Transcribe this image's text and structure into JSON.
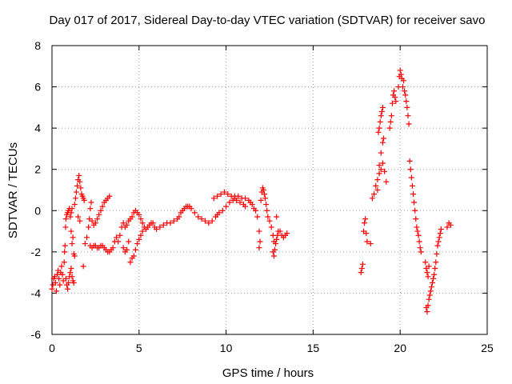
{
  "chart_data": {
    "type": "scatter",
    "title": "Day 017 of 2017, Sidereal Day-to-day VTEC variation (SDTVAR) for receiver savo",
    "xlabel": "GPS time / hours",
    "ylabel": "SDTVAR / TECUs",
    "xlim": [
      0,
      25
    ],
    "ylim": [
      -6,
      8
    ],
    "xticks": [
      0,
      5,
      10,
      15,
      20,
      25
    ],
    "yticks": [
      -6,
      -4,
      -2,
      0,
      2,
      4,
      6,
      8
    ],
    "grid": true,
    "marker": "+",
    "color": "#ff0000",
    "series": [
      {
        "name": "SDTVAR",
        "points": [
          [
            0.0,
            -3.8
          ],
          [
            0.05,
            -3.6
          ],
          [
            0.1,
            -3.3
          ],
          [
            0.15,
            -3.2
          ],
          [
            0.2,
            -3.5
          ],
          [
            0.25,
            -3.9
          ],
          [
            0.3,
            -3.1
          ],
          [
            0.35,
            -2.9
          ],
          [
            0.4,
            -3.3
          ],
          [
            0.45,
            -3.6
          ],
          [
            0.5,
            -3.0
          ],
          [
            0.55,
            -2.7
          ],
          [
            0.6,
            -3.1
          ],
          [
            0.65,
            -3.4
          ],
          [
            0.7,
            -2.5
          ],
          [
            0.72,
            -2.0
          ],
          [
            0.75,
            -1.7
          ],
          [
            0.78,
            -0.8
          ],
          [
            0.8,
            -0.4
          ],
          [
            0.85,
            -0.2
          ],
          [
            0.9,
            -0.1
          ],
          [
            0.95,
            0.0
          ],
          [
            1.0,
            0.1
          ],
          [
            1.05,
            -0.3
          ],
          [
            1.1,
            -0.1
          ],
          [
            1.15,
            0.1
          ],
          [
            0.8,
            -3.3
          ],
          [
            0.85,
            -3.6
          ],
          [
            0.9,
            -3.8
          ],
          [
            0.95,
            -3.5
          ],
          [
            1.0,
            -3.2
          ],
          [
            1.05,
            -3.0
          ],
          [
            1.1,
            -2.8
          ],
          [
            1.15,
            -3.2
          ],
          [
            1.2,
            -3.4
          ],
          [
            1.25,
            -3.5
          ],
          [
            1.1,
            -1.0
          ],
          [
            1.15,
            -1.6
          ],
          [
            1.2,
            -1.3
          ],
          [
            1.25,
            -2.1
          ],
          [
            1.3,
            -2.2
          ],
          [
            1.3,
            0.3
          ],
          [
            1.35,
            0.6
          ],
          [
            1.4,
            0.9
          ],
          [
            1.45,
            1.2
          ],
          [
            1.5,
            1.5
          ],
          [
            1.55,
            1.7
          ],
          [
            1.6,
            1.4
          ],
          [
            1.65,
            1.1
          ],
          [
            1.7,
            0.8
          ],
          [
            1.75,
            0.7
          ],
          [
            1.8,
            0.6
          ],
          [
            1.85,
            0.5
          ],
          [
            1.5,
            -0.3
          ],
          [
            1.6,
            -0.5
          ],
          [
            1.8,
            -2.7
          ],
          [
            1.9,
            -1.6
          ],
          [
            2.0,
            -1.3
          ],
          [
            2.1,
            -0.8
          ],
          [
            2.15,
            -0.4
          ],
          [
            2.2,
            0.1
          ],
          [
            2.25,
            0.4
          ],
          [
            2.3,
            -0.5
          ],
          [
            2.4,
            -0.7
          ],
          [
            2.5,
            -0.6
          ],
          [
            2.6,
            -0.4
          ],
          [
            2.7,
            -0.2
          ],
          [
            2.8,
            0.0
          ],
          [
            2.9,
            0.2
          ],
          [
            3.0,
            0.4
          ],
          [
            3.1,
            0.5
          ],
          [
            3.2,
            0.6
          ],
          [
            3.3,
            0.7
          ],
          [
            2.2,
            -1.7
          ],
          [
            2.3,
            -1.8
          ],
          [
            2.4,
            -1.7
          ],
          [
            2.5,
            -1.7
          ],
          [
            2.6,
            -1.8
          ],
          [
            2.7,
            -1.8
          ],
          [
            2.8,
            -1.7
          ],
          [
            2.9,
            -1.7
          ],
          [
            3.0,
            -1.8
          ],
          [
            3.1,
            -1.9
          ],
          [
            3.2,
            -2.0
          ],
          [
            3.3,
            -2.0
          ],
          [
            3.4,
            -1.9
          ],
          [
            3.5,
            -1.8
          ],
          [
            3.6,
            -1.5
          ],
          [
            3.7,
            -1.3
          ],
          [
            3.8,
            -1.5
          ],
          [
            3.9,
            -1.2
          ],
          [
            4.0,
            -0.8
          ],
          [
            4.1,
            -0.6
          ],
          [
            4.2,
            -0.8
          ],
          [
            4.3,
            -0.7
          ],
          [
            4.4,
            -0.5
          ],
          [
            4.5,
            -0.4
          ],
          [
            4.6,
            -0.3
          ],
          [
            4.7,
            -0.1
          ],
          [
            4.8,
            0.0
          ],
          [
            4.9,
            -0.1
          ],
          [
            5.0,
            -0.2
          ],
          [
            5.1,
            -0.4
          ],
          [
            5.2,
            -0.6
          ],
          [
            5.3,
            -0.8
          ],
          [
            4.1,
            -1.8
          ],
          [
            4.2,
            -2.0
          ],
          [
            4.3,
            -1.9
          ],
          [
            4.4,
            -1.5
          ],
          [
            4.5,
            -2.5
          ],
          [
            4.6,
            -2.3
          ],
          [
            4.7,
            -2.2
          ],
          [
            4.8,
            -1.9
          ],
          [
            4.9,
            -1.6
          ],
          [
            5.0,
            -1.4
          ],
          [
            5.1,
            -1.2
          ],
          [
            5.2,
            -1.0
          ],
          [
            5.4,
            -0.9
          ],
          [
            5.5,
            -0.8
          ],
          [
            5.6,
            -0.7
          ],
          [
            5.7,
            -0.6
          ],
          [
            5.8,
            -0.6
          ],
          [
            5.9,
            -0.8
          ],
          [
            6.0,
            -0.9
          ],
          [
            6.2,
            -0.8
          ],
          [
            6.4,
            -0.7
          ],
          [
            6.6,
            -0.6
          ],
          [
            6.8,
            -0.6
          ],
          [
            7.0,
            -0.5
          ],
          [
            7.2,
            -0.4
          ],
          [
            7.3,
            -0.3
          ],
          [
            7.4,
            -0.1
          ],
          [
            7.5,
            0.0
          ],
          [
            7.6,
            0.1
          ],
          [
            7.7,
            0.2
          ],
          [
            7.8,
            0.2
          ],
          [
            7.9,
            0.2
          ],
          [
            8.0,
            0.1
          ],
          [
            8.2,
            -0.1
          ],
          [
            8.4,
            -0.3
          ],
          [
            8.6,
            -0.4
          ],
          [
            8.8,
            -0.5
          ],
          [
            9.0,
            -0.6
          ],
          [
            9.2,
            -0.5
          ],
          [
            9.4,
            -0.3
          ],
          [
            9.5,
            -0.2
          ],
          [
            9.6,
            -0.1
          ],
          [
            9.8,
            0.0
          ],
          [
            10.0,
            0.2
          ],
          [
            10.2,
            0.4
          ],
          [
            10.4,
            0.5
          ],
          [
            10.5,
            0.6
          ],
          [
            10.6,
            0.5
          ],
          [
            10.8,
            0.4
          ],
          [
            11.0,
            0.3
          ],
          [
            11.1,
            0.2
          ],
          [
            9.3,
            0.6
          ],
          [
            9.5,
            0.7
          ],
          [
            9.7,
            0.8
          ],
          [
            9.9,
            0.9
          ],
          [
            10.1,
            0.8
          ],
          [
            10.3,
            0.7
          ],
          [
            10.5,
            0.7
          ],
          [
            10.7,
            0.7
          ],
          [
            10.9,
            0.6
          ],
          [
            11.1,
            0.6
          ],
          [
            11.3,
            0.5
          ],
          [
            11.4,
            0.4
          ],
          [
            11.5,
            0.3
          ],
          [
            11.6,
            0.1
          ],
          [
            11.7,
            0.0
          ],
          [
            11.8,
            -0.3
          ],
          [
            11.9,
            -1.0
          ],
          [
            11.95,
            -1.5
          ],
          [
            11.9,
            -1.8
          ],
          [
            12.0,
            0.5
          ],
          [
            12.05,
            0.9
          ],
          [
            12.1,
            1.1
          ],
          [
            12.15,
            1.0
          ],
          [
            12.2,
            0.8
          ],
          [
            12.25,
            0.6
          ],
          [
            12.3,
            0.3
          ],
          [
            12.35,
            0.0
          ],
          [
            12.4,
            -0.3
          ],
          [
            12.5,
            -0.5
          ],
          [
            12.6,
            -0.8
          ],
          [
            12.7,
            -1.2
          ],
          [
            12.75,
            -1.5
          ],
          [
            12.7,
            -2.0
          ],
          [
            12.75,
            -2.2
          ],
          [
            12.8,
            -1.9
          ],
          [
            12.85,
            -1.6
          ],
          [
            12.9,
            -1.4
          ],
          [
            12.95,
            -1.2
          ],
          [
            13.0,
            -1.0
          ],
          [
            12.9,
            -0.3
          ],
          [
            13.1,
            -1.0
          ],
          [
            13.2,
            -1.2
          ],
          [
            13.3,
            -1.3
          ],
          [
            13.4,
            -1.2
          ],
          [
            13.5,
            -1.1
          ],
          [
            17.75,
            -3.0
          ],
          [
            17.8,
            -2.8
          ],
          [
            17.85,
            -2.6
          ],
          [
            17.9,
            -1.0
          ],
          [
            17.95,
            -0.6
          ],
          [
            18.0,
            -0.4
          ],
          [
            18.05,
            -1.1
          ],
          [
            18.1,
            -1.5
          ],
          [
            18.3,
            -1.6
          ],
          [
            18.4,
            0.6
          ],
          [
            18.5,
            0.8
          ],
          [
            18.6,
            1.2
          ],
          [
            18.7,
            1.5
          ],
          [
            18.8,
            1.8
          ],
          [
            18.9,
            2.0
          ],
          [
            19.0,
            2.3
          ],
          [
            19.1,
            1.9
          ],
          [
            19.2,
            1.4
          ],
          [
            18.7,
            1.0
          ],
          [
            18.8,
            2.2
          ],
          [
            18.9,
            2.8
          ],
          [
            19.0,
            3.3
          ],
          [
            19.05,
            3.5
          ],
          [
            18.75,
            3.8
          ],
          [
            18.8,
            4.0
          ],
          [
            18.85,
            4.3
          ],
          [
            18.9,
            4.6
          ],
          [
            18.95,
            4.8
          ],
          [
            19.0,
            5.0
          ],
          [
            19.4,
            4.0
          ],
          [
            19.45,
            4.3
          ],
          [
            19.5,
            4.6
          ],
          [
            19.55,
            5.2
          ],
          [
            19.6,
            5.6
          ],
          [
            19.65,
            5.8
          ],
          [
            19.7,
            5.5
          ],
          [
            19.75,
            5.3
          ],
          [
            19.9,
            6.0
          ],
          [
            19.95,
            6.5
          ],
          [
            20.0,
            6.8
          ],
          [
            20.05,
            6.6
          ],
          [
            20.1,
            6.4
          ],
          [
            20.15,
            6.0
          ],
          [
            20.2,
            6.3
          ],
          [
            20.25,
            5.8
          ],
          [
            20.3,
            5.6
          ],
          [
            20.35,
            5.3
          ],
          [
            20.4,
            5.0
          ],
          [
            20.45,
            4.6
          ],
          [
            20.5,
            4.2
          ],
          [
            20.55,
            2.4
          ],
          [
            20.6,
            2.0
          ],
          [
            20.65,
            1.6
          ],
          [
            20.7,
            1.2
          ],
          [
            20.75,
            0.8
          ],
          [
            20.8,
            0.4
          ],
          [
            20.85,
            0.0
          ],
          [
            20.9,
            -0.4
          ],
          [
            20.95,
            -0.8
          ],
          [
            21.0,
            -1.0
          ],
          [
            21.05,
            -1.2
          ],
          [
            21.1,
            -1.5
          ],
          [
            21.15,
            -1.8
          ],
          [
            21.2,
            -2.0
          ],
          [
            21.45,
            -2.5
          ],
          [
            21.5,
            -2.8
          ],
          [
            21.55,
            -3.0
          ],
          [
            21.6,
            -3.2
          ],
          [
            21.65,
            -2.7
          ],
          [
            21.5,
            -4.7
          ],
          [
            21.55,
            -4.9
          ],
          [
            21.6,
            -4.6
          ],
          [
            21.65,
            -4.3
          ],
          [
            21.7,
            -4.1
          ],
          [
            21.75,
            -3.9
          ],
          [
            21.8,
            -3.7
          ],
          [
            21.85,
            -3.5
          ],
          [
            21.9,
            -3.3
          ],
          [
            21.95,
            -3.1
          ],
          [
            22.0,
            -2.8
          ],
          [
            22.05,
            -2.5
          ],
          [
            22.1,
            -2.1
          ],
          [
            22.15,
            -1.7
          ],
          [
            22.2,
            -1.5
          ],
          [
            22.25,
            -1.3
          ],
          [
            22.3,
            -1.1
          ],
          [
            22.35,
            -0.9
          ],
          [
            22.7,
            -0.8
          ],
          [
            22.8,
            -0.6
          ],
          [
            22.9,
            -0.7
          ]
        ]
      }
    ]
  }
}
